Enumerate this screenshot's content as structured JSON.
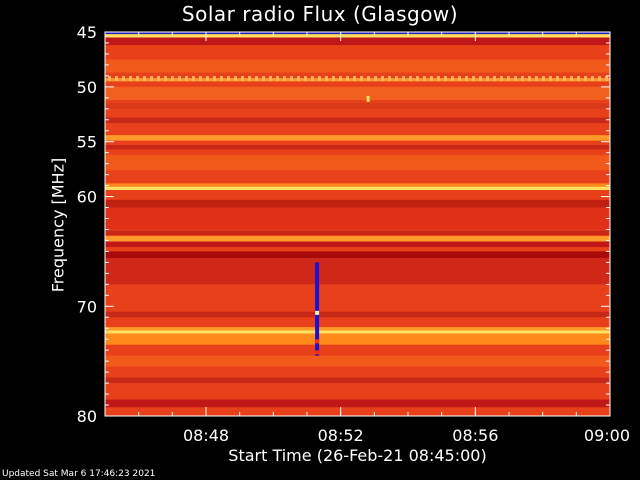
{
  "chart_data": {
    "type": "heatmap",
    "title": "Solar radio Flux (Glasgow)",
    "ylabel": "Frequency [MHz]",
    "xlabel": "Start Time (26-Feb-21 08:45:00)",
    "footer": "Updated Sat Mar  6 17:46:23 2021",
    "ylim": [
      45,
      80
    ],
    "y_inverted": true,
    "yticks": [
      45,
      50,
      55,
      60,
      70,
      80
    ],
    "xlim": [
      "08:45",
      "09:00"
    ],
    "xticks": [
      "08:48",
      "08:52",
      "08:56",
      "09:00"
    ],
    "colors": {
      "background": "#000000",
      "base": "#e8401a",
      "dark": "#b81010",
      "bright": "#ff8a1c",
      "hot": "#ffe060",
      "burst": "#1a10d0"
    },
    "bands": [
      {
        "f0": 45.0,
        "f1": 45.2,
        "color": "#2020c0"
      },
      {
        "f0": 45.2,
        "f1": 45.5,
        "color": "#ffe060"
      },
      {
        "f0": 45.5,
        "f1": 46.2,
        "color": "#c01818"
      },
      {
        "f0": 46.2,
        "f1": 47.5,
        "color": "#e84018"
      },
      {
        "f0": 47.5,
        "f1": 48.7,
        "color": "#f25a1c"
      },
      {
        "f0": 49.2,
        "f1": 49.5,
        "color": "#ff9a2a"
      },
      {
        "f0": 50.0,
        "f1": 51.2,
        "color": "#f26020"
      },
      {
        "f0": 51.5,
        "f1": 52.0,
        "color": "#d83818"
      },
      {
        "f0": 52.8,
        "f1": 53.3,
        "color": "#c82818"
      },
      {
        "f0": 54.4,
        "f1": 54.9,
        "color": "#ff9a2a"
      },
      {
        "f0": 55.3,
        "f1": 55.7,
        "color": "#c82818"
      },
      {
        "f0": 56.2,
        "f1": 57.6,
        "color": "#f25a1c"
      },
      {
        "f0": 58.8,
        "f1": 59.1,
        "color": "#ff8a1c"
      },
      {
        "f0": 59.1,
        "f1": 59.4,
        "color": "#ffe060"
      },
      {
        "f0": 60.3,
        "f1": 61.0,
        "color": "#c02010"
      },
      {
        "f0": 61.0,
        "f1": 63.0,
        "color": "#e03018"
      },
      {
        "f0": 63.1,
        "f1": 63.5,
        "color": "#c82818"
      },
      {
        "f0": 63.6,
        "f1": 64.1,
        "color": "#ff9a2a"
      },
      {
        "f0": 64.1,
        "f1": 64.6,
        "color": "#c01818"
      },
      {
        "f0": 64.6,
        "f1": 65.0,
        "color": "#e84018"
      },
      {
        "f0": 65.0,
        "f1": 65.6,
        "color": "#a80a0a"
      },
      {
        "f0": 65.6,
        "f1": 68.0,
        "color": "#d02818"
      },
      {
        "f0": 70.5,
        "f1": 71.0,
        "color": "#c82818"
      },
      {
        "f0": 71.9,
        "f1": 72.2,
        "color": "#ff9a2a"
      },
      {
        "f0": 72.2,
        "f1": 72.5,
        "color": "#ffe060"
      },
      {
        "f0": 72.5,
        "f1": 73.5,
        "color": "#ff8a1c"
      },
      {
        "f0": 74.5,
        "f1": 75.5,
        "color": "#f25a1c"
      },
      {
        "f0": 76.5,
        "f1": 77.0,
        "color": "#c82818"
      },
      {
        "f0": 78.5,
        "f1": 79.2,
        "color": "#c01818"
      }
    ],
    "dotted_band": {
      "f": 49.2,
      "color": "#ffb060"
    },
    "burst": {
      "time_min": 6.3,
      "f0": 66.0,
      "f1": 74.5,
      "color": "#1a10d0",
      "hot_freqs": [
        70.6,
        73.2,
        74.2
      ]
    },
    "spot": {
      "time_min": 7.8,
      "freq": 51.1,
      "color": "#ffe060"
    }
  }
}
